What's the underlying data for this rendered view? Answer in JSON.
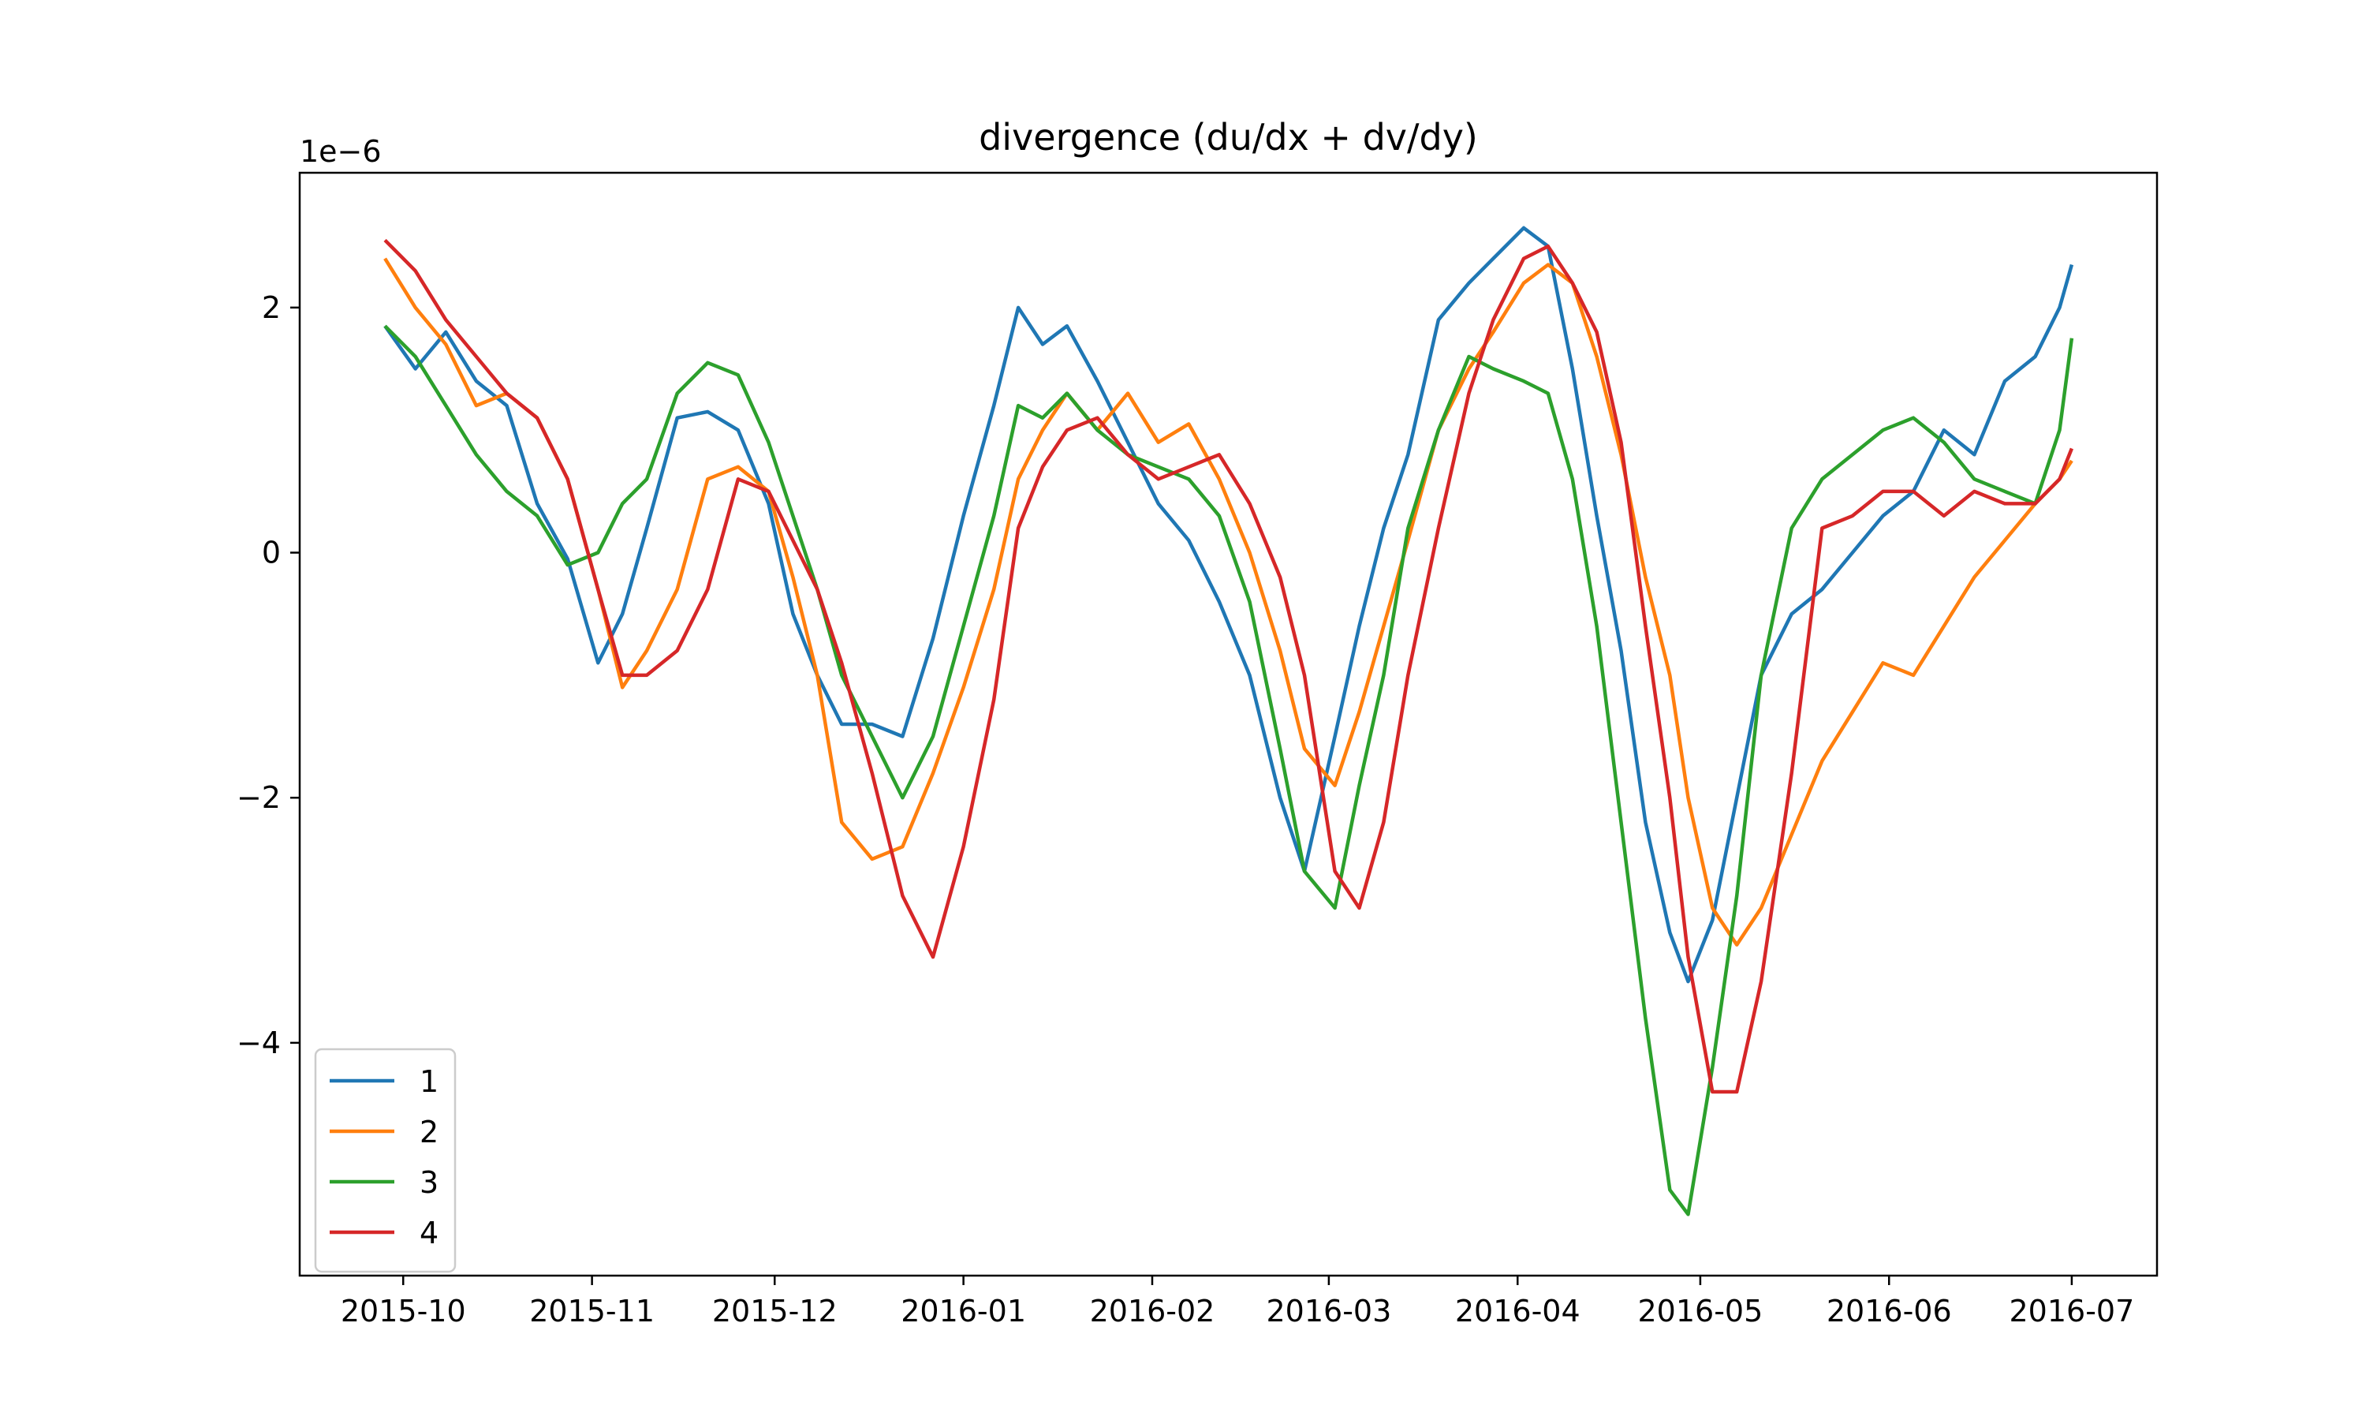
{
  "chart_data": {
    "type": "line",
    "title": "divergence (du/dx + dv/dy)",
    "xlabel": "",
    "ylabel": "",
    "y_multiplier_label": "1e−6",
    "x_is_date": true,
    "x_tick_labels": [
      "2015-10",
      "2015-11",
      "2015-12",
      "2016-01",
      "2016-02",
      "2016-03",
      "2016-04",
      "2016-05",
      "2016-06",
      "2016-07"
    ],
    "x_ticks": [
      "2015-10-01",
      "2015-11-01",
      "2015-12-01",
      "2016-01-01",
      "2016-02-01",
      "2016-03-01",
      "2016-04-01",
      "2016-05-01",
      "2016-06-01",
      "2016-07-01"
    ],
    "xlim": [
      "2015-09-14",
      "2016-07-15"
    ],
    "y_ticks": [
      -4,
      -2,
      0,
      2
    ],
    "y_tick_labels": [
      "−4",
      "−2",
      "0",
      "2"
    ],
    "ylim": [
      -5.9,
      3.1
    ],
    "legend_position": "lower-left",
    "grid": false,
    "series": [
      {
        "name": "1",
        "color": "#1f77b4",
        "points": [
          [
            "2015-09-28",
            1.85
          ],
          [
            "2015-10-03",
            1.5
          ],
          [
            "2015-10-08",
            1.8
          ],
          [
            "2015-10-13",
            1.4
          ],
          [
            "2015-10-18",
            1.2
          ],
          [
            "2015-10-23",
            0.4
          ],
          [
            "2015-10-28",
            -0.05
          ],
          [
            "2015-11-02",
            -0.9
          ],
          [
            "2015-11-06",
            -0.5
          ],
          [
            "2015-11-10",
            0.2
          ],
          [
            "2015-11-15",
            1.1
          ],
          [
            "2015-11-20",
            1.15
          ],
          [
            "2015-11-25",
            1.0
          ],
          [
            "2015-11-30",
            0.4
          ],
          [
            "2015-12-04",
            -0.5
          ],
          [
            "2015-12-08",
            -1.0
          ],
          [
            "2015-12-12",
            -1.4
          ],
          [
            "2015-12-17",
            -1.4
          ],
          [
            "2015-12-22",
            -1.5
          ],
          [
            "2015-12-27",
            -0.7
          ],
          [
            "2016-01-01",
            0.3
          ],
          [
            "2016-01-06",
            1.2
          ],
          [
            "2016-01-10",
            2.0
          ],
          [
            "2016-01-14",
            1.7
          ],
          [
            "2016-01-18",
            1.85
          ],
          [
            "2016-01-23",
            1.4
          ],
          [
            "2016-01-28",
            0.9
          ],
          [
            "2016-02-02",
            0.4
          ],
          [
            "2016-02-07",
            0.1
          ],
          [
            "2016-02-12",
            -0.4
          ],
          [
            "2016-02-17",
            -1.0
          ],
          [
            "2016-02-22",
            -2.0
          ],
          [
            "2016-02-26",
            -2.6
          ],
          [
            "2016-03-02",
            -1.5
          ],
          [
            "2016-03-06",
            -0.6
          ],
          [
            "2016-03-10",
            0.2
          ],
          [
            "2016-03-14",
            0.8
          ],
          [
            "2016-03-19",
            1.9
          ],
          [
            "2016-03-24",
            2.2
          ],
          [
            "2016-03-28",
            2.4
          ],
          [
            "2016-04-02",
            2.65
          ],
          [
            "2016-04-06",
            2.5
          ],
          [
            "2016-04-10",
            1.5
          ],
          [
            "2016-04-14",
            0.3
          ],
          [
            "2016-04-18",
            -0.8
          ],
          [
            "2016-04-22",
            -2.2
          ],
          [
            "2016-04-26",
            -3.1
          ],
          [
            "2016-04-29",
            -3.5
          ],
          [
            "2016-05-03",
            -3.0
          ],
          [
            "2016-05-07",
            -2.0
          ],
          [
            "2016-05-11",
            -1.0
          ],
          [
            "2016-05-16",
            -0.5
          ],
          [
            "2016-05-21",
            -0.3
          ],
          [
            "2016-05-26",
            0.0
          ],
          [
            "2016-05-31",
            0.3
          ],
          [
            "2016-06-05",
            0.5
          ],
          [
            "2016-06-10",
            1.0
          ],
          [
            "2016-06-15",
            0.8
          ],
          [
            "2016-06-20",
            1.4
          ],
          [
            "2016-06-25",
            1.6
          ],
          [
            "2016-06-29",
            2.0
          ],
          [
            "2016-07-01",
            2.35
          ]
        ]
      },
      {
        "name": "2",
        "color": "#ff7f0e",
        "points": [
          [
            "2015-09-28",
            2.4
          ],
          [
            "2015-10-03",
            2.0
          ],
          [
            "2015-10-08",
            1.7
          ],
          [
            "2015-10-13",
            1.2
          ],
          [
            "2015-10-18",
            1.3
          ],
          [
            "2015-10-23",
            1.1
          ],
          [
            "2015-10-28",
            0.6
          ],
          [
            "2015-11-02",
            -0.3
          ],
          [
            "2015-11-06",
            -1.1
          ],
          [
            "2015-11-10",
            -0.8
          ],
          [
            "2015-11-15",
            -0.3
          ],
          [
            "2015-11-20",
            0.6
          ],
          [
            "2015-11-25",
            0.7
          ],
          [
            "2015-11-30",
            0.5
          ],
          [
            "2015-12-04",
            -0.2
          ],
          [
            "2015-12-08",
            -1.0
          ],
          [
            "2015-12-12",
            -2.2
          ],
          [
            "2015-12-17",
            -2.5
          ],
          [
            "2015-12-22",
            -2.4
          ],
          [
            "2015-12-27",
            -1.8
          ],
          [
            "2016-01-01",
            -1.1
          ],
          [
            "2016-01-06",
            -0.3
          ],
          [
            "2016-01-10",
            0.6
          ],
          [
            "2016-01-14",
            1.0
          ],
          [
            "2016-01-18",
            1.3
          ],
          [
            "2016-01-23",
            1.0
          ],
          [
            "2016-01-28",
            1.3
          ],
          [
            "2016-02-02",
            0.9
          ],
          [
            "2016-02-07",
            1.05
          ],
          [
            "2016-02-12",
            0.6
          ],
          [
            "2016-02-17",
            0.0
          ],
          [
            "2016-02-22",
            -0.8
          ],
          [
            "2016-02-26",
            -1.6
          ],
          [
            "2016-03-02",
            -1.9
          ],
          [
            "2016-03-06",
            -1.3
          ],
          [
            "2016-03-10",
            -0.6
          ],
          [
            "2016-03-14",
            0.1
          ],
          [
            "2016-03-19",
            1.0
          ],
          [
            "2016-03-24",
            1.5
          ],
          [
            "2016-03-28",
            1.8
          ],
          [
            "2016-04-02",
            2.2
          ],
          [
            "2016-04-06",
            2.35
          ],
          [
            "2016-04-10",
            2.2
          ],
          [
            "2016-04-14",
            1.6
          ],
          [
            "2016-04-18",
            0.8
          ],
          [
            "2016-04-22",
            -0.2
          ],
          [
            "2016-04-26",
            -1.0
          ],
          [
            "2016-04-29",
            -2.0
          ],
          [
            "2016-05-03",
            -2.9
          ],
          [
            "2016-05-07",
            -3.2
          ],
          [
            "2016-05-11",
            -2.9
          ],
          [
            "2016-05-16",
            -2.3
          ],
          [
            "2016-05-21",
            -1.7
          ],
          [
            "2016-05-26",
            -1.3
          ],
          [
            "2016-05-31",
            -0.9
          ],
          [
            "2016-06-05",
            -1.0
          ],
          [
            "2016-06-10",
            -0.6
          ],
          [
            "2016-06-15",
            -0.2
          ],
          [
            "2016-06-20",
            0.1
          ],
          [
            "2016-06-25",
            0.4
          ],
          [
            "2016-06-29",
            0.6
          ],
          [
            "2016-07-01",
            0.75
          ]
        ]
      },
      {
        "name": "3",
        "color": "#2ca02c",
        "points": [
          [
            "2015-09-28",
            1.85
          ],
          [
            "2015-10-03",
            1.6
          ],
          [
            "2015-10-08",
            1.2
          ],
          [
            "2015-10-13",
            0.8
          ],
          [
            "2015-10-18",
            0.5
          ],
          [
            "2015-10-23",
            0.3
          ],
          [
            "2015-10-28",
            -0.1
          ],
          [
            "2015-11-02",
            0.0
          ],
          [
            "2015-11-06",
            0.4
          ],
          [
            "2015-11-10",
            0.6
          ],
          [
            "2015-11-15",
            1.3
          ],
          [
            "2015-11-20",
            1.55
          ],
          [
            "2015-11-25",
            1.45
          ],
          [
            "2015-11-30",
            0.9
          ],
          [
            "2015-12-04",
            0.3
          ],
          [
            "2015-12-08",
            -0.3
          ],
          [
            "2015-12-12",
            -1.0
          ],
          [
            "2015-12-17",
            -1.5
          ],
          [
            "2015-12-22",
            -2.0
          ],
          [
            "2015-12-27",
            -1.5
          ],
          [
            "2016-01-01",
            -0.6
          ],
          [
            "2016-01-06",
            0.3
          ],
          [
            "2016-01-10",
            1.2
          ],
          [
            "2016-01-14",
            1.1
          ],
          [
            "2016-01-18",
            1.3
          ],
          [
            "2016-01-23",
            1.0
          ],
          [
            "2016-01-28",
            0.8
          ],
          [
            "2016-02-02",
            0.7
          ],
          [
            "2016-02-07",
            0.6
          ],
          [
            "2016-02-12",
            0.3
          ],
          [
            "2016-02-17",
            -0.4
          ],
          [
            "2016-02-22",
            -1.6
          ],
          [
            "2016-02-26",
            -2.6
          ],
          [
            "2016-03-02",
            -2.9
          ],
          [
            "2016-03-06",
            -1.9
          ],
          [
            "2016-03-10",
            -1.0
          ],
          [
            "2016-03-14",
            0.2
          ],
          [
            "2016-03-19",
            1.0
          ],
          [
            "2016-03-24",
            1.6
          ],
          [
            "2016-03-28",
            1.5
          ],
          [
            "2016-04-02",
            1.4
          ],
          [
            "2016-04-06",
            1.3
          ],
          [
            "2016-04-10",
            0.6
          ],
          [
            "2016-04-14",
            -0.6
          ],
          [
            "2016-04-18",
            -2.2
          ],
          [
            "2016-04-22",
            -3.8
          ],
          [
            "2016-04-26",
            -5.2
          ],
          [
            "2016-04-29",
            -5.4
          ],
          [
            "2016-05-03",
            -4.2
          ],
          [
            "2016-05-07",
            -2.8
          ],
          [
            "2016-05-11",
            -1.0
          ],
          [
            "2016-05-16",
            0.2
          ],
          [
            "2016-05-21",
            0.6
          ],
          [
            "2016-05-26",
            0.8
          ],
          [
            "2016-05-31",
            1.0
          ],
          [
            "2016-06-05",
            1.1
          ],
          [
            "2016-06-10",
            0.9
          ],
          [
            "2016-06-15",
            0.6
          ],
          [
            "2016-06-20",
            0.5
          ],
          [
            "2016-06-25",
            0.4
          ],
          [
            "2016-06-29",
            1.0
          ],
          [
            "2016-07-01",
            1.75
          ]
        ]
      },
      {
        "name": "4",
        "color": "#d62728",
        "points": [
          [
            "2015-09-28",
            2.55
          ],
          [
            "2015-10-03",
            2.3
          ],
          [
            "2015-10-08",
            1.9
          ],
          [
            "2015-10-13",
            1.6
          ],
          [
            "2015-10-18",
            1.3
          ],
          [
            "2015-10-23",
            1.1
          ],
          [
            "2015-10-28",
            0.6
          ],
          [
            "2015-11-02",
            -0.3
          ],
          [
            "2015-11-06",
            -1.0
          ],
          [
            "2015-11-10",
            -1.0
          ],
          [
            "2015-11-15",
            -0.8
          ],
          [
            "2015-11-20",
            -0.3
          ],
          [
            "2015-11-25",
            0.6
          ],
          [
            "2015-11-30",
            0.5
          ],
          [
            "2015-12-04",
            0.1
          ],
          [
            "2015-12-08",
            -0.3
          ],
          [
            "2015-12-12",
            -0.9
          ],
          [
            "2015-12-17",
            -1.8
          ],
          [
            "2015-12-22",
            -2.8
          ],
          [
            "2015-12-27",
            -3.3
          ],
          [
            "2016-01-01",
            -2.4
          ],
          [
            "2016-01-06",
            -1.2
          ],
          [
            "2016-01-10",
            0.2
          ],
          [
            "2016-01-14",
            0.7
          ],
          [
            "2016-01-18",
            1.0
          ],
          [
            "2016-01-23",
            1.1
          ],
          [
            "2016-01-28",
            0.8
          ],
          [
            "2016-02-02",
            0.6
          ],
          [
            "2016-02-07",
            0.7
          ],
          [
            "2016-02-12",
            0.8
          ],
          [
            "2016-02-17",
            0.4
          ],
          [
            "2016-02-22",
            -0.2
          ],
          [
            "2016-02-26",
            -1.0
          ],
          [
            "2016-03-02",
            -2.6
          ],
          [
            "2016-03-06",
            -2.9
          ],
          [
            "2016-03-10",
            -2.2
          ],
          [
            "2016-03-14",
            -1.0
          ],
          [
            "2016-03-19",
            0.2
          ],
          [
            "2016-03-24",
            1.3
          ],
          [
            "2016-03-28",
            1.9
          ],
          [
            "2016-04-02",
            2.4
          ],
          [
            "2016-04-06",
            2.5
          ],
          [
            "2016-04-10",
            2.2
          ],
          [
            "2016-04-14",
            1.8
          ],
          [
            "2016-04-18",
            0.9
          ],
          [
            "2016-04-22",
            -0.6
          ],
          [
            "2016-04-26",
            -2.0
          ],
          [
            "2016-04-29",
            -3.3
          ],
          [
            "2016-05-03",
            -4.4
          ],
          [
            "2016-05-07",
            -4.4
          ],
          [
            "2016-05-11",
            -3.5
          ],
          [
            "2016-05-16",
            -1.8
          ],
          [
            "2016-05-21",
            0.2
          ],
          [
            "2016-05-26",
            0.3
          ],
          [
            "2016-05-31",
            0.5
          ],
          [
            "2016-06-05",
            0.5
          ],
          [
            "2016-06-10",
            0.3
          ],
          [
            "2016-06-15",
            0.5
          ],
          [
            "2016-06-20",
            0.4
          ],
          [
            "2016-06-25",
            0.4
          ],
          [
            "2016-06-29",
            0.6
          ],
          [
            "2016-07-01",
            0.85
          ]
        ]
      }
    ]
  }
}
